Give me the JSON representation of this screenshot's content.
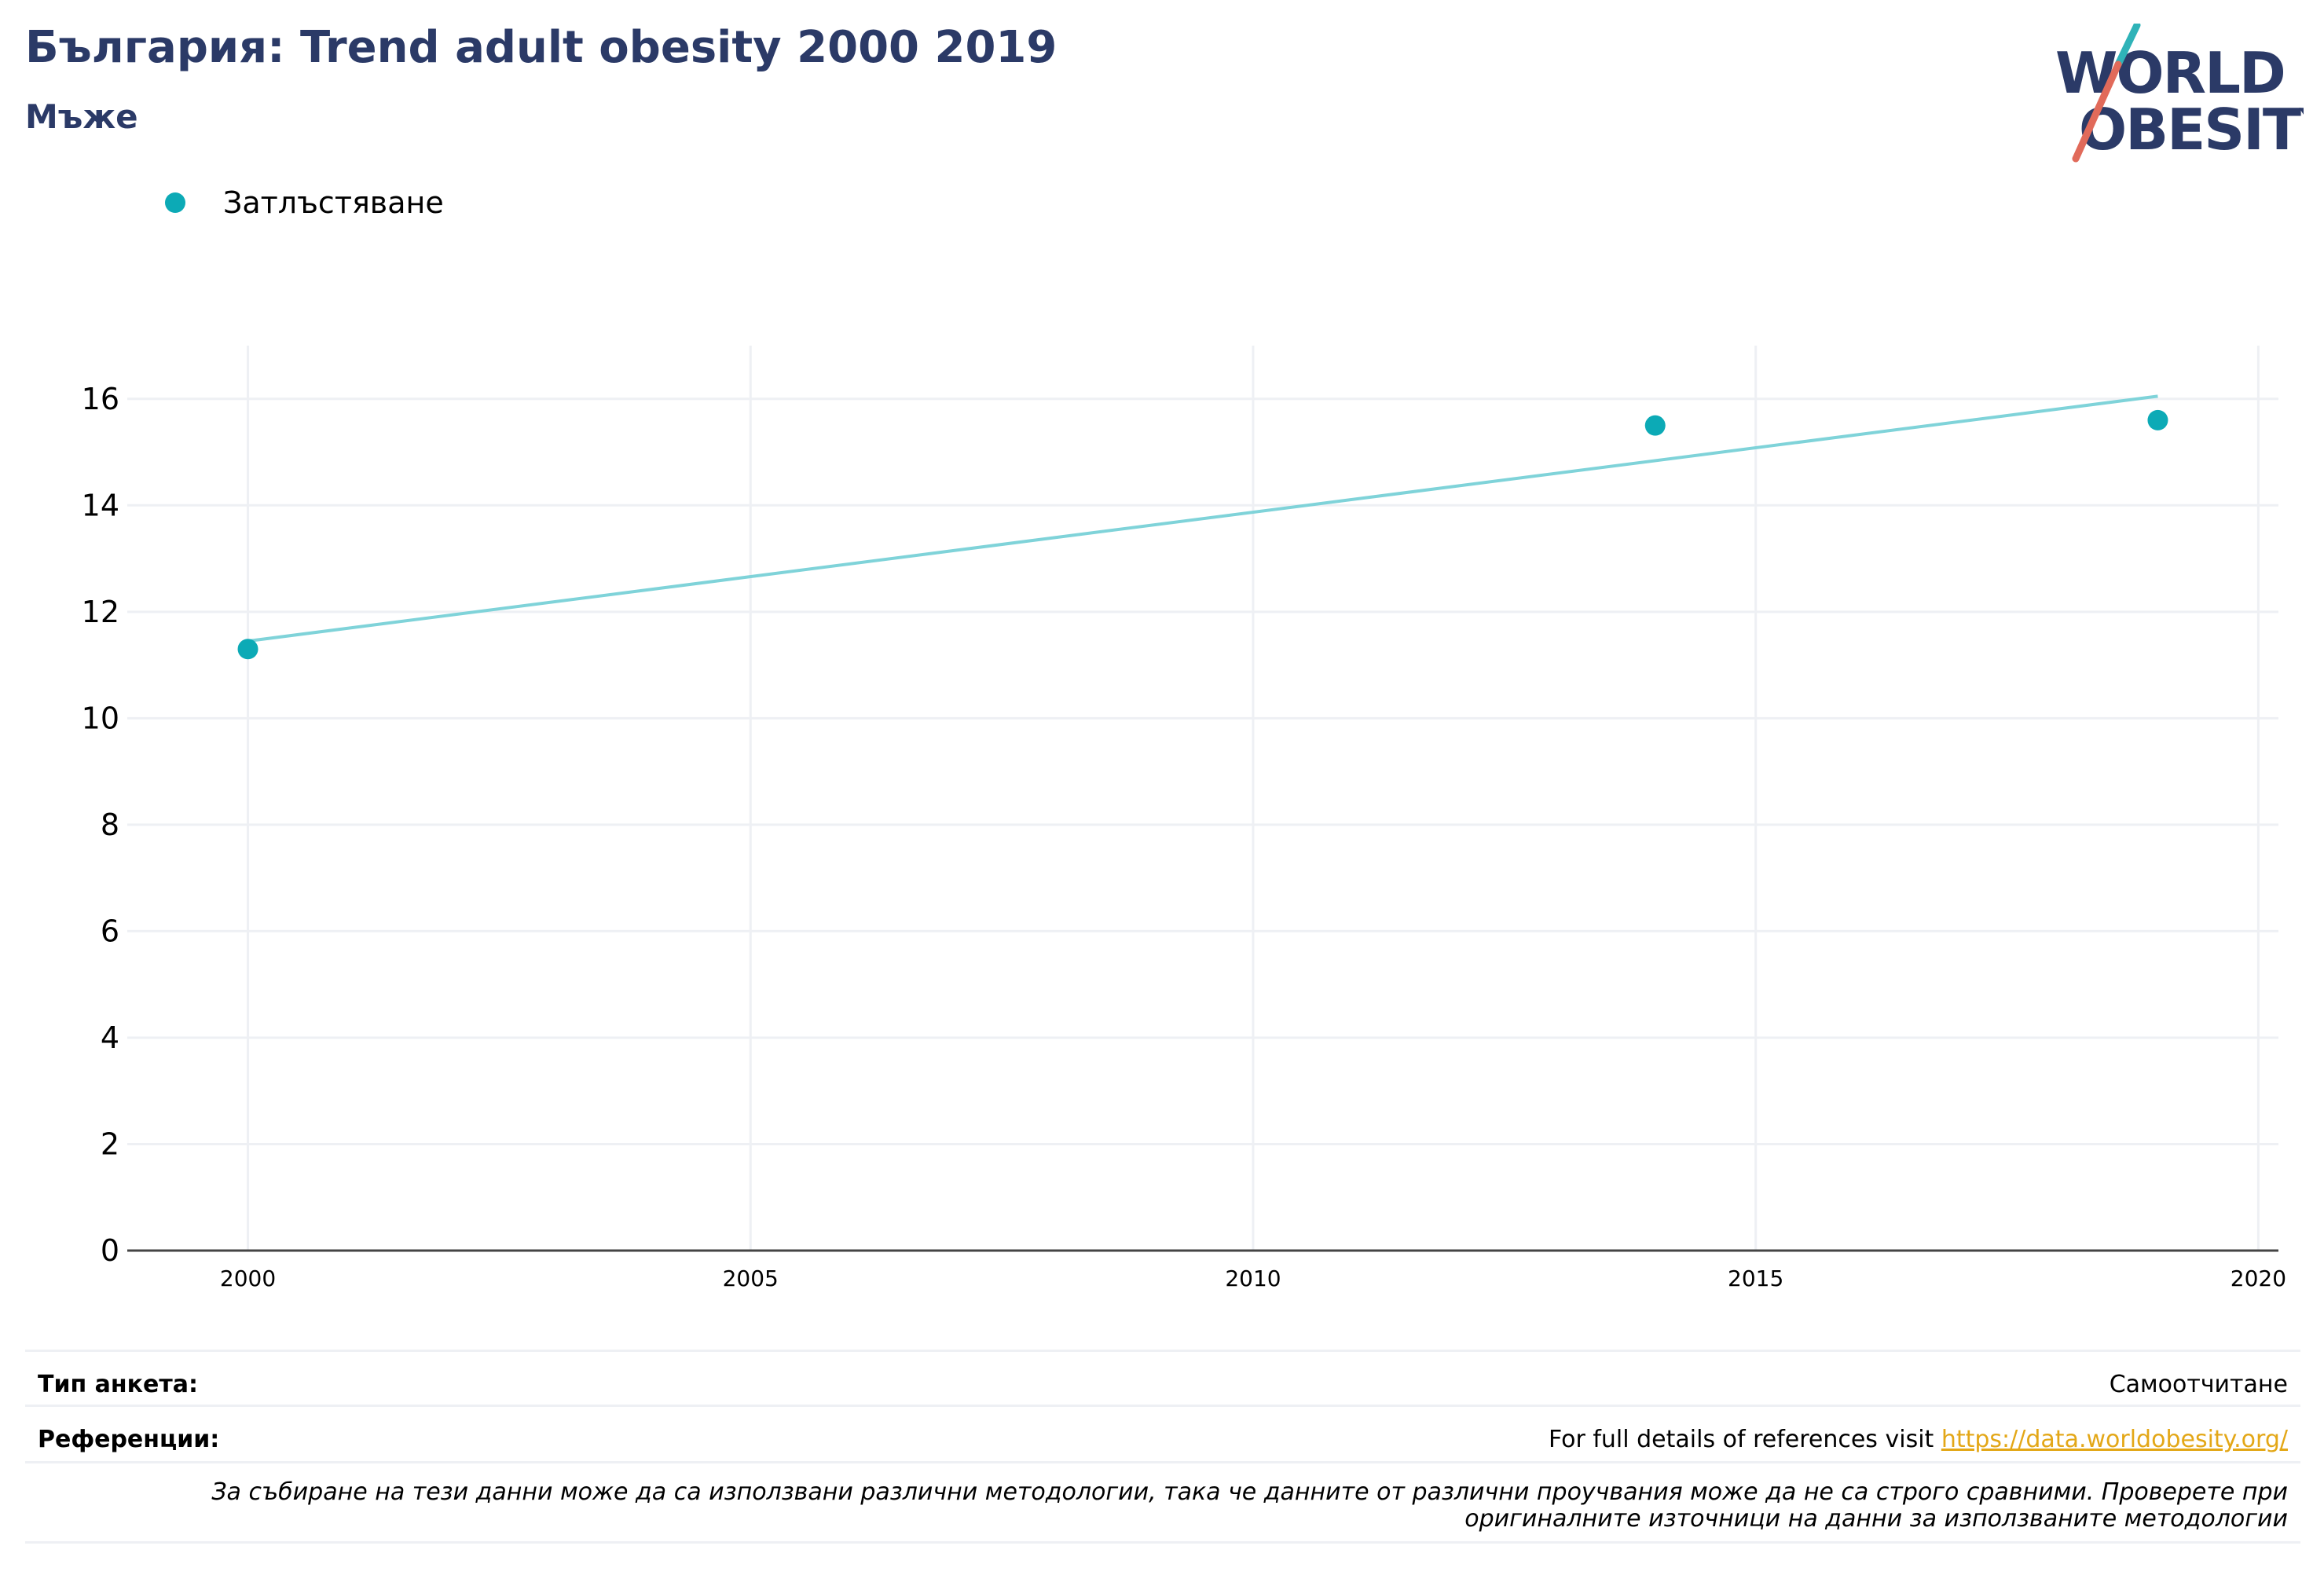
{
  "header": {
    "title": "България: Trend adult obesity 2000 2019",
    "subtitle": "Мъже"
  },
  "logo": {
    "line1": "WORLD",
    "line2": "OBESITY"
  },
  "colors": {
    "series": "#0caab6",
    "trend": "#7fd3d9",
    "title": "#2b3a67",
    "grid": "#eef0f4",
    "link": "#e3a717"
  },
  "chart_data": {
    "type": "scatter",
    "series": [
      {
        "name": "Затлъстяване",
        "x": [
          2000,
          2014,
          2019
        ],
        "y": [
          11.3,
          15.5,
          15.6
        ]
      }
    ],
    "trendline": {
      "x": [
        2000,
        2019
      ],
      "y": [
        11.45,
        16.05
      ]
    },
    "xlim": [
      1998.8,
      2020.2
    ],
    "ylim": [
      0,
      17
    ],
    "xticks": [
      2000,
      2005,
      2010,
      2015,
      2020
    ],
    "yticks": [
      0,
      2,
      4,
      6,
      8,
      10,
      12,
      14,
      16
    ],
    "grid": true,
    "legend": "top-left"
  },
  "footer": {
    "survey_label": "Тип анкета:",
    "survey_value": "Самоотчитане",
    "refs_label": "Референции:",
    "refs_text": "For full details of references visit ",
    "refs_link": "https://data.worldobesity.org/",
    "note_line1": "За събиране на тези данни може да са използвани различни методологии, така че данните от различни проучвания може да не са строго сравними. Проверете при",
    "note_line2": "оригиналните източници на данни за използваните методологии"
  }
}
